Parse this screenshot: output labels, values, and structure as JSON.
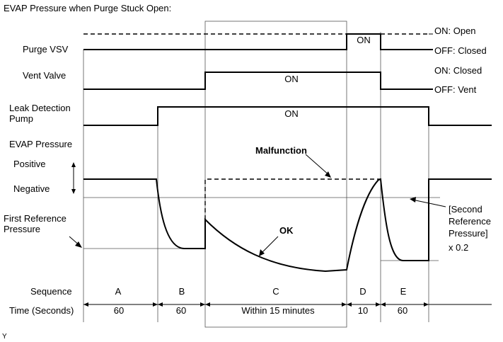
{
  "title": "EVAP Pressure when Purge Stuck Open:",
  "rows": {
    "purge_vsv": "Purge VSV",
    "vent_valve": "Vent Valve",
    "leak_pump_line1": "Leak Detection",
    "leak_pump_line2": "Pump",
    "evap_pressure": "EVAP Pressure",
    "positive": "Positive",
    "negative": "Negative",
    "first_ref_line1": "First Reference",
    "first_ref_line2": "Pressure",
    "sequence": "Sequence",
    "time": "Time (Seconds)"
  },
  "states": {
    "on_open": "ON: Open",
    "off_closed": "OFF: Closed",
    "on_closed": "ON: Closed",
    "off_vent": "OFF: Vent",
    "on": "ON"
  },
  "annotations": {
    "malfunction": "Malfunction",
    "ok": "OK",
    "second_ref_line1": "[Second",
    "second_ref_line2": "Reference",
    "second_ref_line3": "Pressure]",
    "second_ref_line4": "x 0.2"
  },
  "sequence": {
    "labels": [
      "A",
      "B",
      "C",
      "D",
      "E"
    ],
    "times": [
      "60",
      "60",
      "Within 15 minutes",
      "10",
      "60"
    ]
  },
  "corner_mark": "Y"
}
